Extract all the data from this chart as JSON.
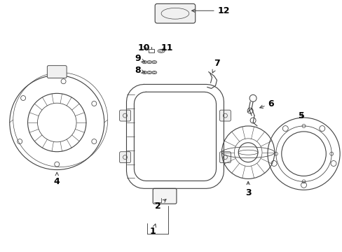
{
  "background_color": "#ffffff",
  "line_color": "#404040",
  "label_color": "#000000",
  "figsize": [
    4.89,
    3.6
  ],
  "dpi": 100,
  "label_fontsize": 9,
  "lw": 0.8
}
